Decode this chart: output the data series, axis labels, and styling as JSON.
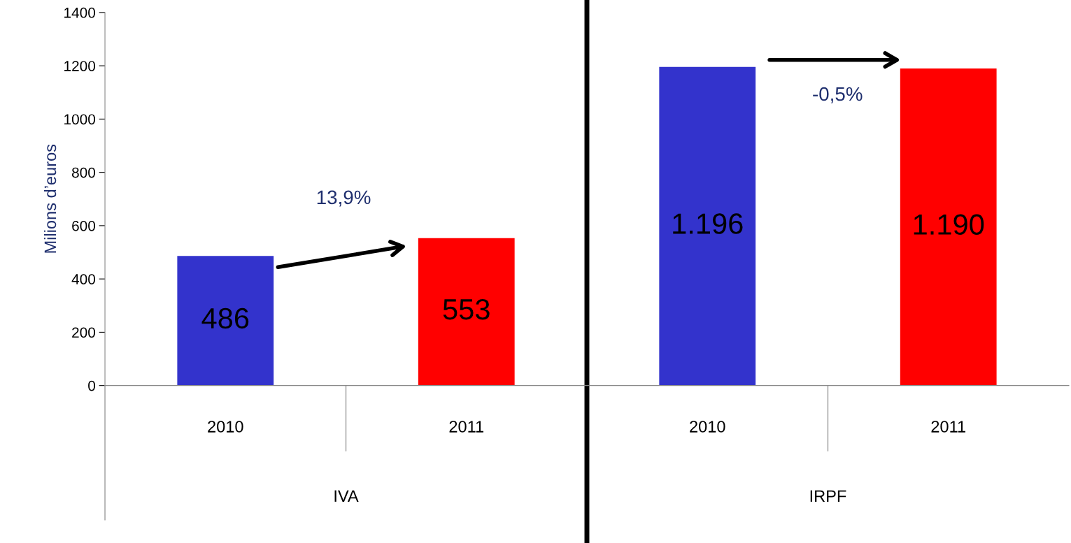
{
  "chart_data": {
    "type": "bar",
    "categories": [
      "2010",
      "2011",
      "2010",
      "2011"
    ],
    "values": [
      486,
      553,
      1196,
      1190
    ],
    "colors": [
      "#3333cc",
      "#ff0000",
      "#3333cc",
      "#ff0000"
    ],
    "value_labels": [
      "486",
      "553",
      "1.196",
      "1.190"
    ],
    "ylabel": "Milions d’euros",
    "ylim": [
      0,
      1400
    ],
    "yticks": [
      0,
      200,
      400,
      600,
      800,
      1000,
      1200,
      1400
    ],
    "annotations": [
      "13,9%",
      "-0,5%",
      "IVA",
      "IRPF"
    ],
    "grid": false
  }
}
